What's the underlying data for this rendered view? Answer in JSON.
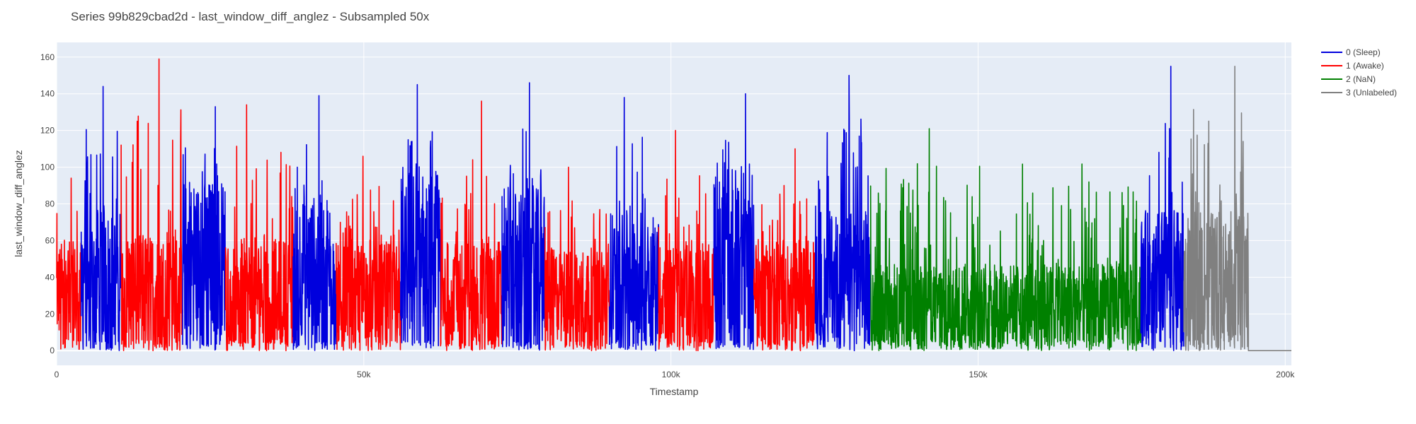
{
  "chart_data": {
    "type": "line",
    "title": "Series 99b829cbad2d - last_window_diff_anglez - Subsampled 50x",
    "xlabel": "Timestamp",
    "ylabel": "last_window_diff_anglez",
    "xlim": [
      0,
      201000
    ],
    "ylim": [
      -8,
      168
    ],
    "x_ticks": [
      0,
      50000,
      100000,
      150000,
      200000
    ],
    "x_tick_labels": [
      "0",
      "50k",
      "100k",
      "150k",
      "200k"
    ],
    "y_ticks": [
      0,
      20,
      40,
      60,
      80,
      100,
      120,
      140,
      160
    ],
    "y_tick_labels": [
      "0",
      "20",
      "40",
      "60",
      "80",
      "100",
      "120",
      "140",
      "160"
    ],
    "grid": true,
    "legend_position": "top-right",
    "series": [
      {
        "name": "0 (Sleep)",
        "color": "#0000dd"
      },
      {
        "name": "1 (Awake)",
        "color": "#ff0000"
      },
      {
        "name": "2 (NaN)",
        "color": "#008000"
      },
      {
        "name": "3 (Unlabeled)",
        "color": "#808080"
      }
    ],
    "segments": [
      {
        "series": 1,
        "x": [
          0,
          4000
        ],
        "y_max": 110,
        "peak": 94,
        "base": 35
      },
      {
        "series": 0,
        "x": [
          4000,
          10500
        ],
        "y_max": 144,
        "peak": 144,
        "base": 45
      },
      {
        "series": 1,
        "x": [
          10500,
          20500
        ],
        "y_max": 159,
        "peak": 159,
        "base": 38
      },
      {
        "series": 0,
        "x": [
          20500,
          27500
        ],
        "y_max": 133,
        "peak": 133,
        "base": 55
      },
      {
        "series": 1,
        "x": [
          27500,
          38500
        ],
        "y_max": 134,
        "peak": 134,
        "base": 36
      },
      {
        "series": 0,
        "x": [
          38500,
          45500
        ],
        "y_max": 139,
        "peak": 139,
        "base": 50
      },
      {
        "series": 1,
        "x": [
          45500,
          56000
        ],
        "y_max": 106,
        "peak": 106,
        "base": 35
      },
      {
        "series": 0,
        "x": [
          56000,
          62500
        ],
        "y_max": 145,
        "peak": 145,
        "base": 58
      },
      {
        "series": 1,
        "x": [
          62500,
          72500
        ],
        "y_max": 136,
        "peak": 136,
        "base": 36
      },
      {
        "series": 0,
        "x": [
          72500,
          79500
        ],
        "y_max": 146,
        "peak": 146,
        "base": 52
      },
      {
        "series": 1,
        "x": [
          79500,
          90000
        ],
        "y_max": 100,
        "peak": 100,
        "base": 33
      },
      {
        "series": 0,
        "x": [
          90000,
          98000
        ],
        "y_max": 138,
        "peak": 138,
        "base": 45
      },
      {
        "series": 1,
        "x": [
          98000,
          107000
        ],
        "y_max": 120,
        "peak": 120,
        "base": 34
      },
      {
        "series": 0,
        "x": [
          107000,
          113500
        ],
        "y_max": 140,
        "peak": 140,
        "base": 60
      },
      {
        "series": 1,
        "x": [
          113500,
          123500
        ],
        "y_max": 110,
        "peak": 110,
        "base": 36
      },
      {
        "series": 0,
        "x": [
          123500,
          132500
        ],
        "y_max": 150,
        "peak": 150,
        "base": 45
      },
      {
        "series": 2,
        "x": [
          132500,
          176500
        ],
        "y_max": 121,
        "peak": 121,
        "base": 28
      },
      {
        "series": 0,
        "x": [
          176500,
          183500
        ],
        "y_max": 155,
        "peak": 155,
        "base": 45
      },
      {
        "series": 3,
        "x": [
          183500,
          194000
        ],
        "y_max": 155,
        "peak": 155,
        "base": 45
      },
      {
        "series": 3,
        "x": [
          194000,
          201000
        ],
        "y_max": 0,
        "peak": 0,
        "base": 0
      }
    ]
  }
}
